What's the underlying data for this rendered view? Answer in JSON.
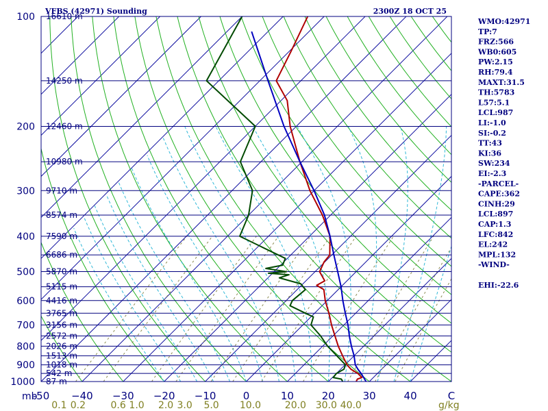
{
  "header": {
    "title": "VFBS (42971) Sounding",
    "time": "2300Z 18 OCT 25"
  },
  "indices": [
    "WMO:42971",
    "TP:7",
    "FRZ:566",
    "WB0:605",
    "PW:2.15",
    "RH:79.4",
    "MAXT:31.5",
    "TH:5783",
    "L57:5.1",
    "LCL:987",
    "LI:-1.0",
    "SI:-0.2",
    "TT:43",
    "KI:36",
    "SW:234",
    "EI:-2.3",
    "-PARCEL-",
    "CAPE:362",
    "CINH:29",
    "LCL:897",
    "CAP:1.3",
    "LFC:842",
    "EL:242",
    "MPL:132",
    "-WIND-",
    "",
    "EHI:-22.6"
  ],
  "chart_data": {
    "type": "line",
    "title": "VFBS (42971) Sounding",
    "xlabel": "",
    "ylabel": "mb",
    "y_scale": "log",
    "ylim": [
      1000,
      100
    ],
    "xlim": [
      -50,
      50
    ],
    "pressure_ticks": [
      100,
      200,
      300,
      400,
      500,
      600,
      700,
      800,
      900,
      1000
    ],
    "pressure_labels": [
      "100",
      "200",
      "300",
      "400",
      "500",
      "600",
      "700",
      "800",
      "900",
      "1000"
    ],
    "unit_label": "mb",
    "temperature_ticks": [
      -50,
      -40,
      -30,
      -20,
      -10,
      0,
      10,
      20,
      30,
      40,
      50
    ],
    "temperature_labels": [
      "-50",
      "−40",
      "−30",
      "−20",
      "−10",
      "0",
      "10",
      "20",
      "30",
      "40",
      "C"
    ],
    "mixing_ratio_unit": "g/kg",
    "mixing_ratio_labels": [
      {
        "label": "0.1",
        "t": -45.6
      },
      {
        "label": "0.2",
        "t": -41.0
      },
      {
        "label": "0.6",
        "t": -31.2
      },
      {
        "label": "1.0",
        "t": -26.7
      },
      {
        "label": "2.0",
        "t": -19.6
      },
      {
        "label": "3.0",
        "t": -15.0
      },
      {
        "label": "5.0",
        "t": -8.5
      },
      {
        "label": "10.0",
        "t": 1.0
      },
      {
        "label": "20.0",
        "t": 12.0
      },
      {
        "label": "30.0",
        "t": 19.5
      },
      {
        "label": "40.0",
        "t": 25.5
      }
    ],
    "heights": [
      {
        "p": 100,
        "label": "16610 m"
      },
      {
        "p": 150,
        "label": "14250 m"
      },
      {
        "p": 200,
        "label": "12460 m"
      },
      {
        "p": 250,
        "label": "10980 m"
      },
      {
        "p": 300,
        "label": "9710 m"
      },
      {
        "p": 350,
        "label": "8574 m"
      },
      {
        "p": 400,
        "label": "7590 m"
      },
      {
        "p": 450,
        "label": "6686 m"
      },
      {
        "p": 500,
        "label": "5870 m"
      },
      {
        "p": 550,
        "label": "5115 m"
      },
      {
        "p": 600,
        "label": "4416 m"
      },
      {
        "p": 650,
        "label": "3765 m"
      },
      {
        "p": 700,
        "label": "3156 m"
      },
      {
        "p": 750,
        "label": "2572 m"
      },
      {
        "p": 800,
        "label": "2026 m"
      },
      {
        "p": 850,
        "label": "1513 m"
      },
      {
        "p": 900,
        "label": "1018 m"
      },
      {
        "p": 950,
        "label": "542 m"
      },
      {
        "p": 1000,
        "label": "87 m"
      }
    ],
    "series": [
      {
        "color": "#b00000",
        "points": [
          [
            1000,
            26.8
          ],
          [
            985,
            26.5
          ],
          [
            975,
            27.2
          ],
          [
            950,
            25.2
          ],
          [
            925,
            22.5
          ],
          [
            900,
            20.5
          ],
          [
            850,
            17.2
          ],
          [
            800,
            13.8
          ],
          [
            750,
            10.5
          ],
          [
            700,
            7.0
          ],
          [
            650,
            3.5
          ],
          [
            600,
            -0.5
          ],
          [
            560,
            -3.5
          ],
          [
            545,
            -6.3
          ],
          [
            530,
            -5.4
          ],
          [
            500,
            -8.9
          ],
          [
            470,
            -10.2
          ],
          [
            450,
            -10.5
          ],
          [
            400,
            -15.0
          ],
          [
            350,
            -22.0
          ],
          [
            300,
            -31.0
          ],
          [
            250,
            -40.5
          ],
          [
            200,
            -51.5
          ],
          [
            170,
            -58.5
          ],
          [
            150,
            -66.0
          ],
          [
            125,
            -69.5
          ],
          [
            100,
            -74.0
          ]
        ]
      },
      {
        "color": "#004a00",
        "points": [
          [
            1000,
            23.5
          ],
          [
            985,
            22.6
          ],
          [
            975,
            20.2
          ],
          [
            950,
            20.0
          ],
          [
            925,
            20.8
          ],
          [
            900,
            20.1
          ],
          [
            850,
            15.8
          ],
          [
            800,
            11.2
          ],
          [
            750,
            7.0
          ],
          [
            700,
            2.0
          ],
          [
            665,
            0.6
          ],
          [
            650,
            -2.2
          ],
          [
            620,
            -7.8
          ],
          [
            600,
            -8.5
          ],
          [
            560,
            -8.0
          ],
          [
            540,
            -10.5
          ],
          [
            520,
            -17.2
          ],
          [
            510,
            -15.6
          ],
          [
            505,
            -21.0
          ],
          [
            500,
            -17.0
          ],
          [
            490,
            -22.8
          ],
          [
            480,
            -19.5
          ],
          [
            460,
            -20.5
          ],
          [
            400,
            -37.0
          ],
          [
            350,
            -40.0
          ],
          [
            300,
            -45.0
          ],
          [
            250,
            -55.0
          ],
          [
            200,
            -60.0
          ],
          [
            150,
            -83.0
          ],
          [
            100,
            -90.0
          ]
        ]
      },
      {
        "color": "#0000c0",
        "points": [
          [
            1000,
            29.2
          ],
          [
            970,
            27.3
          ],
          [
            950,
            26.0
          ],
          [
            925,
            24.2
          ],
          [
            900,
            22.5
          ],
          [
            850,
            20.0
          ],
          [
            800,
            17.0
          ],
          [
            750,
            14.0
          ],
          [
            700,
            11.0
          ],
          [
            650,
            7.5
          ],
          [
            600,
            3.8
          ],
          [
            550,
            0.0
          ],
          [
            500,
            -4.5
          ],
          [
            450,
            -9.5
          ],
          [
            400,
            -15.0
          ],
          [
            350,
            -21.5
          ],
          [
            300,
            -30.0
          ],
          [
            250,
            -40.5
          ],
          [
            200,
            -53.0
          ],
          [
            150,
            -68.0
          ],
          [
            110,
            -84.0
          ]
        ]
      }
    ]
  }
}
